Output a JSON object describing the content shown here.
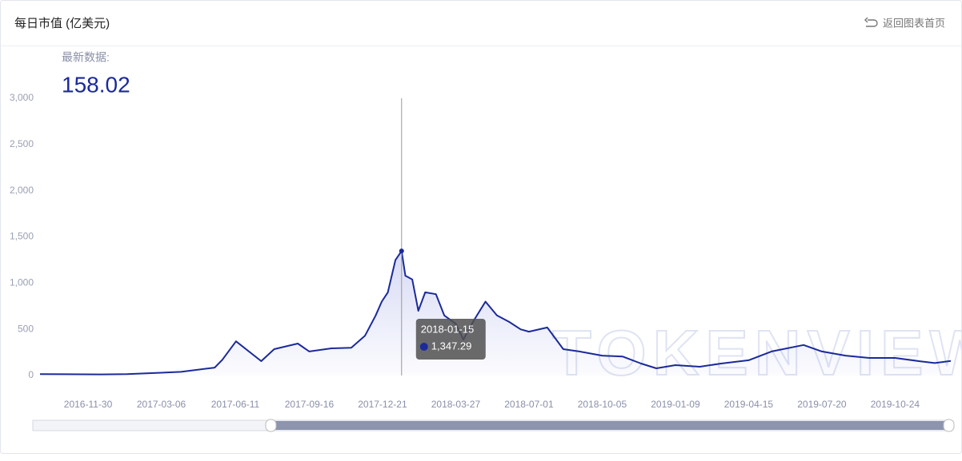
{
  "header": {
    "title": "每日市值 (亿美元)",
    "back_link": "返回图表首页"
  },
  "chart_data": {
    "type": "line",
    "latest_label": "最新数据:",
    "latest_value": 158.02,
    "watermark": "TOKENVIEW",
    "color": "#1b2a9a",
    "x": [
      "2016-09-28",
      "2016-11-01",
      "2016-12-15",
      "2017-01-20",
      "2017-03-06",
      "2017-04-01",
      "2017-05-15",
      "2017-05-25",
      "2017-06-12",
      "2017-07-15",
      "2017-08-01",
      "2017-09-01",
      "2017-09-16",
      "2017-10-15",
      "2017-11-10",
      "2017-11-28",
      "2017-12-12",
      "2017-12-20",
      "2017-12-28",
      "2018-01-07",
      "2018-01-15",
      "2018-01-20",
      "2018-01-29",
      "2018-02-06",
      "2018-02-15",
      "2018-03-01",
      "2018-03-12",
      "2018-03-27",
      "2018-04-06",
      "2018-04-20",
      "2018-05-05",
      "2018-05-20",
      "2018-06-05",
      "2018-06-20",
      "2018-07-01",
      "2018-07-25",
      "2018-08-15",
      "2018-09-05",
      "2018-10-05",
      "2018-11-01",
      "2018-11-25",
      "2018-12-15",
      "2019-01-09",
      "2019-02-10",
      "2019-03-10",
      "2019-04-15",
      "2019-05-15",
      "2019-06-26",
      "2019-07-20",
      "2019-08-20",
      "2019-09-20",
      "2019-10-24",
      "2019-11-25",
      "2019-12-15",
      "2020-01-05"
    ],
    "values": [
      15,
      14,
      12,
      15,
      30,
      40,
      86,
      170,
      370,
      156,
      285,
      346,
      260,
      294,
      300,
      430,
      650,
      800,
      900,
      1250,
      1347.29,
      1080,
      1040,
      700,
      900,
      880,
      650,
      560,
      390,
      600,
      800,
      650,
      580,
      500,
      475,
      520,
      285,
      260,
      215,
      205,
      130,
      78,
      112,
      95,
      130,
      165,
      260,
      330,
      260,
      215,
      190,
      190,
      155,
      135,
      158.02
    ],
    "tooltip": {
      "date": "2018-01-15",
      "value": 1347.29,
      "value_label": "1,347.29"
    },
    "xlim": [
      "2016-09-28",
      "2020-01-05"
    ],
    "xticks": [
      "2016-11-30",
      "2017-03-06",
      "2017-06-11",
      "2017-09-16",
      "2017-12-21",
      "2018-03-27",
      "2018-07-01",
      "2018-10-05",
      "2019-01-09",
      "2019-04-15",
      "2019-07-20",
      "2019-10-24"
    ],
    "ylim": [
      0,
      3000
    ],
    "yticks": [
      0,
      500,
      {
        "value": 1000,
        "label": "1,000"
      },
      {
        "value": 1500,
        "label": "1,500"
      },
      {
        "value": 2000,
        "label": "2,000"
      },
      {
        "value": 2500,
        "label": "2,500"
      },
      {
        "value": 3000,
        "label": "3,000"
      }
    ]
  }
}
